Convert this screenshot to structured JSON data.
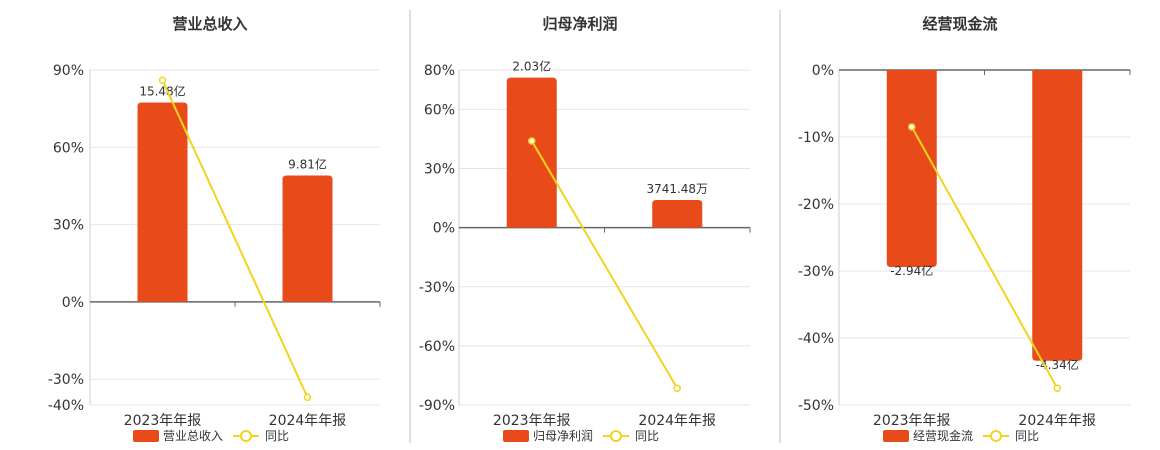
{
  "chart_data": [
    {
      "type": "bar",
      "title": "营业总收入",
      "categories": [
        "2023年年报",
        "2024年年报"
      ],
      "series": [
        {
          "name": "营业总收入",
          "kind": "bar",
          "values": [
            15.48,
            9.81
          ],
          "labels": [
            "15.48亿",
            "9.81亿"
          ],
          "color": "#E84A1A"
        },
        {
          "name": "同比",
          "kind": "line",
          "values": [
            86,
            -37
          ],
          "color": "#F2D31E"
        }
      ],
      "ylim": [
        -40,
        90
      ],
      "yticks": [
        90,
        60,
        30,
        0,
        -30,
        -40
      ],
      "ytick_labels": [
        "90%",
        "60%",
        "30%",
        "0%",
        "-30%",
        "-40%"
      ],
      "bar_ratio": 5
    },
    {
      "type": "bar",
      "title": "归母净利润",
      "categories": [
        "2023年年报",
        "2024年年报"
      ],
      "series": [
        {
          "name": "归母净利润",
          "kind": "bar",
          "values": [
            2.03,
            0.374148
          ],
          "labels": [
            "2.03亿",
            "3741.48万"
          ],
          "color": "#E84A1A"
        },
        {
          "name": "同比",
          "kind": "line",
          "values": [
            44,
            -81.5
          ],
          "color": "#F2D31E"
        }
      ],
      "ylim": [
        -90,
        80
      ],
      "yticks": [
        80,
        60,
        30,
        0,
        -30,
        -60,
        -90
      ],
      "ytick_labels": [
        "80%",
        "60%",
        "30%",
        "0%",
        "-30%",
        "-60%",
        "-90%"
      ],
      "bar_ratio": 37.5
    },
    {
      "type": "bar",
      "title": "经营现金流",
      "categories": [
        "2023年年报",
        "2024年年报"
      ],
      "series": [
        {
          "name": "经营现金流",
          "kind": "bar",
          "values": [
            -2.94,
            -4.34
          ],
          "labels": [
            "-2.94亿",
            "-4.34亿"
          ],
          "color": "#E84A1A"
        },
        {
          "name": "同比",
          "kind": "line",
          "values": [
            -8.5,
            -47.5
          ],
          "color": "#F2D31E"
        }
      ],
      "ylim": [
        -50,
        0
      ],
      "yticks": [
        0,
        -10,
        -20,
        -30,
        -40,
        -50
      ],
      "ytick_labels": [
        "0%",
        "-10%",
        "-20%",
        "-30%",
        "-40%",
        "-50%"
      ],
      "bar_ratio": 10
    }
  ]
}
